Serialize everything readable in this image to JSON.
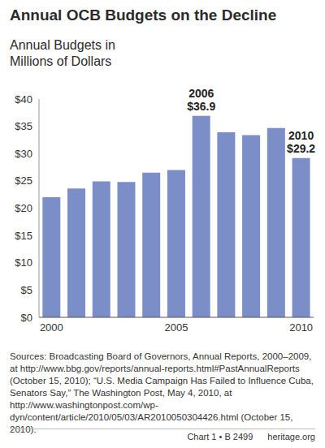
{
  "chart_data": {
    "type": "bar",
    "title": "Annual OCB Budgets on the Decline",
    "subtitle": "Annual Budgets in Millions of Dollars",
    "categories": [
      "2000",
      null,
      null,
      null,
      null,
      "2005",
      null,
      null,
      null,
      null,
      "2010"
    ],
    "values": [
      22.0,
      23.6,
      24.9,
      24.8,
      26.5,
      27.0,
      36.9,
      33.9,
      33.4,
      34.7,
      29.2
    ],
    "color": "#7b8ec8",
    "ylim": [
      0,
      40
    ],
    "yticks": [
      {
        "value": 0,
        "label": "$0"
      },
      {
        "value": 5,
        "label": "$5"
      },
      {
        "value": 10,
        "label": "$10"
      },
      {
        "value": 15,
        "label": "$15"
      },
      {
        "value": 20,
        "label": "$20"
      },
      {
        "value": 25,
        "label": "$25"
      },
      {
        "value": 30,
        "label": "$30"
      },
      {
        "value": 35,
        "label": "$35"
      },
      {
        "value": 40,
        "label": "$40"
      }
    ],
    "grid": false,
    "annotations": [
      {
        "index": 6,
        "text": "2006",
        "value": 36.9,
        "label": "$36.9"
      },
      {
        "index": 10,
        "text": "2010",
        "value": 29.2,
        "label": "$29.2"
      }
    ],
    "sources": "Sources: Broadcasting Board of Governors, Annual Reports, 2000–2009, at http://www.bbg.gov/reports/annual-reports.html#PastAnnualReports (October 15, 2010); “U.S. Media Campaign Has Failed to Influence Cuba, Senators Say,” The Washington Post, May 4, 2010, at http://www.washingtonpost.com/wp-dyn/content/article/2010/05/03/AR2010050304426.html (October 15, 2010).",
    "footer": [
      "Chart 1 • B 2499",
      "heritage.org"
    ]
  }
}
